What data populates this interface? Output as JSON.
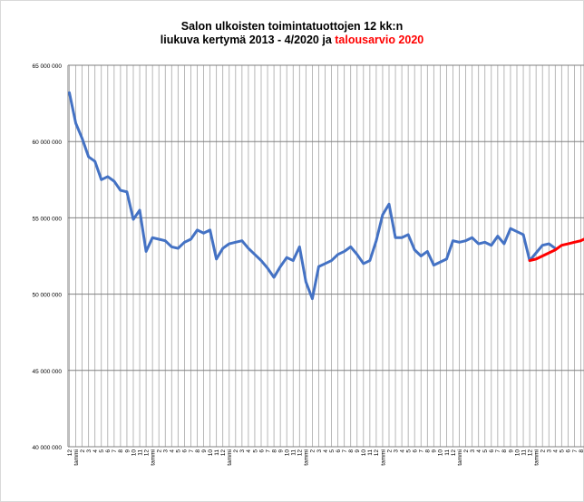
{
  "chart_data": {
    "type": "line",
    "title_line1": "Salon ulkoisten toimintatuottojen  12 kk:n",
    "title_line2_prefix": "liukuva kertymä 2013 - 4/2020 ja",
    "title_line2_highlight": "talousarvio 2020",
    "ylim": [
      40000000,
      65000000
    ],
    "yticks": [
      40000000,
      45000000,
      50000000,
      55000000,
      60000000,
      65000000
    ],
    "ytick_labels": [
      "40 000 000",
      "45 000 000",
      "50 000 000",
      "55 000 000",
      "60 000 000",
      "65 000 000"
    ],
    "grid": true,
    "x_months": [
      "12",
      "tammi",
      "2",
      "3",
      "4",
      "5",
      "6",
      "7",
      "8",
      "9",
      "10",
      "11",
      "12",
      "tammi",
      "2",
      "3",
      "4",
      "5",
      "6",
      "7",
      "8",
      "9",
      "10",
      "11",
      "12",
      "tammi",
      "2",
      "3",
      "4",
      "5",
      "6",
      "7",
      "8",
      "9",
      "10",
      "11",
      "12",
      "tammi",
      "2",
      "3",
      "4",
      "5",
      "6",
      "7",
      "8",
      "9",
      "10",
      "11",
      "12",
      "tammi",
      "2",
      "3",
      "4",
      "5",
      "6",
      "7",
      "8",
      "9",
      "10",
      "11",
      "12",
      "tammi",
      "2",
      "3",
      "4",
      "5",
      "6",
      "7",
      "8",
      "9",
      "10",
      "11",
      "12",
      "tammi",
      "2",
      "3",
      "4",
      "5",
      "6",
      "7",
      "8",
      "9"
    ],
    "series": [
      {
        "color": "#4472c4",
        "start_index": 0,
        "values": [
          63200000,
          61200000,
          60200000,
          59000000,
          58700000,
          57500000,
          57700000,
          57400000,
          56800000,
          56700000,
          54900000,
          55500000,
          52800000,
          53700000,
          53600000,
          53500000,
          53100000,
          53000000,
          53400000,
          53600000,
          54200000,
          54000000,
          54200000,
          52300000,
          53000000,
          53300000,
          53400000,
          53500000,
          53000000,
          52600000,
          52200000,
          51700000,
          51100000,
          51800000,
          52400000,
          52200000,
          53100000,
          50800000,
          49700000,
          51800000,
          52000000,
          52200000,
          52600000,
          52800000,
          53100000,
          52600000,
          52000000,
          52200000,
          53500000,
          55200000,
          55900000,
          53700000,
          53700000,
          53900000,
          52900000,
          52500000,
          52800000,
          51900000,
          52100000,
          52300000,
          53500000,
          53400000,
          53500000,
          53700000,
          53300000,
          53400000,
          53200000,
          53800000,
          53300000,
          54300000,
          54100000,
          53900000,
          52200000,
          52700000,
          53200000,
          53300000,
          53000000
        ]
      },
      {
        "color": "#ff0000",
        "start_index": 72,
        "values": [
          52200000,
          52300000,
          52500000,
          52700000,
          52900000,
          53200000,
          53300000,
          53400000,
          53500000,
          53700000
        ]
      }
    ]
  }
}
